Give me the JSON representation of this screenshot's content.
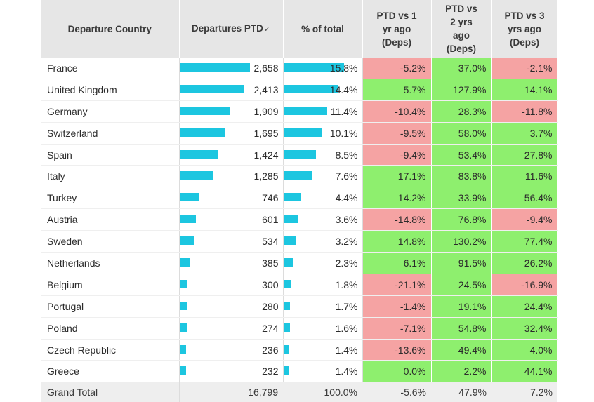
{
  "header": {
    "country": "Departure Country",
    "departures": "Departures PTD",
    "sort_glyph": "✓",
    "pct_total": "% of total",
    "vs1_line1": "PTD vs 1",
    "vs1_line2": "yr ago",
    "vs1_line3": "(Deps)",
    "vs2_line1": "PTD vs",
    "vs2_line2": "2 yrs",
    "vs2_line3": "ago",
    "vs2_line4": "(Deps)",
    "vs3_line1": "PTD vs 3",
    "vs3_line2": "yrs ago",
    "vs3_line3": "(Deps)"
  },
  "colors": {
    "bar": "#1cc6e0",
    "negative": "#f5a3a3",
    "positive": "#8eef6e",
    "header_bg": "#e6e6e6"
  },
  "rows": [
    {
      "country": "France",
      "departures": "2,658",
      "dep_value": 2658,
      "pct_total": "15.8%",
      "pct_value": 15.8,
      "vs1": "-5.2%",
      "vs2": "37.0%",
      "vs3": "-2.1%"
    },
    {
      "country": "United Kingdom",
      "departures": "2,413",
      "dep_value": 2413,
      "pct_total": "14.4%",
      "pct_value": 14.4,
      "vs1": "5.7%",
      "vs2": "127.9%",
      "vs3": "14.1%"
    },
    {
      "country": "Germany",
      "departures": "1,909",
      "dep_value": 1909,
      "pct_total": "11.4%",
      "pct_value": 11.4,
      "vs1": "-10.4%",
      "vs2": "28.3%",
      "vs3": "-11.8%"
    },
    {
      "country": "Switzerland",
      "departures": "1,695",
      "dep_value": 1695,
      "pct_total": "10.1%",
      "pct_value": 10.1,
      "vs1": "-9.5%",
      "vs2": "58.0%",
      "vs3": "3.7%"
    },
    {
      "country": "Spain",
      "departures": "1,424",
      "dep_value": 1424,
      "pct_total": "8.5%",
      "pct_value": 8.5,
      "vs1": "-9.4%",
      "vs2": "53.4%",
      "vs3": "27.8%"
    },
    {
      "country": "Italy",
      "departures": "1,285",
      "dep_value": 1285,
      "pct_total": "7.6%",
      "pct_value": 7.6,
      "vs1": "17.1%",
      "vs2": "83.8%",
      "vs3": "11.6%"
    },
    {
      "country": "Turkey",
      "departures": "746",
      "dep_value": 746,
      "pct_total": "4.4%",
      "pct_value": 4.4,
      "vs1": "14.2%",
      "vs2": "33.9%",
      "vs3": "56.4%"
    },
    {
      "country": "Austria",
      "departures": "601",
      "dep_value": 601,
      "pct_total": "3.6%",
      "pct_value": 3.6,
      "vs1": "-14.8%",
      "vs2": "76.8%",
      "vs3": "-9.4%"
    },
    {
      "country": "Sweden",
      "departures": "534",
      "dep_value": 534,
      "pct_total": "3.2%",
      "pct_value": 3.2,
      "vs1": "14.8%",
      "vs2": "130.2%",
      "vs3": "77.4%"
    },
    {
      "country": "Netherlands",
      "departures": "385",
      "dep_value": 385,
      "pct_total": "2.3%",
      "pct_value": 2.3,
      "vs1": "6.1%",
      "vs2": "91.5%",
      "vs3": "26.2%"
    },
    {
      "country": "Belgium",
      "departures": "300",
      "dep_value": 300,
      "pct_total": "1.8%",
      "pct_value": 1.8,
      "vs1": "-21.1%",
      "vs2": "24.5%",
      "vs3": "-16.9%"
    },
    {
      "country": "Portugal",
      "departures": "280",
      "dep_value": 280,
      "pct_total": "1.7%",
      "pct_value": 1.7,
      "vs1": "-1.4%",
      "vs2": "19.1%",
      "vs3": "24.4%"
    },
    {
      "country": "Poland",
      "departures": "274",
      "dep_value": 274,
      "pct_total": "1.6%",
      "pct_value": 1.6,
      "vs1": "-7.1%",
      "vs2": "54.8%",
      "vs3": "32.4%"
    },
    {
      "country": "Czech Republic",
      "departures": "236",
      "dep_value": 236,
      "pct_total": "1.4%",
      "pct_value": 1.4,
      "vs1": "-13.6%",
      "vs2": "49.4%",
      "vs3": "4.0%"
    },
    {
      "country": "Greece",
      "departures": "232",
      "dep_value": 232,
      "pct_total": "1.4%",
      "pct_value": 1.4,
      "vs1": "0.0%",
      "vs2": "2.2%",
      "vs3": "44.1%"
    }
  ],
  "total": {
    "label": "Grand Total",
    "departures": "16,799",
    "pct_total": "100.0%",
    "vs1": "-5.6%",
    "vs2": "47.9%",
    "vs3": "7.2%"
  }
}
